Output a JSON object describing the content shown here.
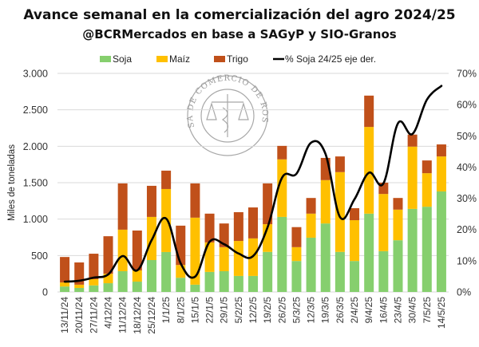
{
  "chart_data": {
    "type": "bar",
    "stacked": true,
    "title": "Avance semanal en la comercialización  del agro 2024/25",
    "subtitle": "@BCRMercados en base a SAGyP y SIO-Granos",
    "xlabel": "",
    "ylabel": "Miles de toneladas",
    "ylim": [
      0,
      3000
    ],
    "yticks": [
      "0",
      "500",
      "1.000",
      "1.500",
      "2.000",
      "2.500",
      "3.000"
    ],
    "ytick_values": [
      0,
      500,
      1000,
      1500,
      2000,
      2500,
      3000
    ],
    "y2lim": [
      0,
      70
    ],
    "y2ticks": [
      "0%",
      "10%",
      "20%",
      "30%",
      "40%",
      "50%",
      "60%",
      "70%"
    ],
    "y2tick_values": [
      0,
      10,
      20,
      30,
      40,
      50,
      60,
      70
    ],
    "grid": true,
    "legend_position": "top",
    "categories": [
      "13/11/24",
      "20/11/24",
      "27/11/24",
      "4/12/24",
      "11/12/24",
      "18/12/24",
      "25/12/24",
      "1/1/25",
      "8/1/25",
      "15/1/5",
      "22/1/5",
      "29/1/5",
      "5/2/25",
      "12/2/5",
      "19/2/5",
      "26/2/5",
      "5/3/25",
      "12/3/5",
      "19/3/5",
      "26/3/5",
      "2/4/25",
      "9/4/25",
      "16/4/5",
      "23/4/5",
      "30/4/5",
      "7/5/25",
      "14/5/25"
    ],
    "series": [
      {
        "name": "Soja",
        "type": "bar",
        "axis": "left",
        "color": "#86CF6E",
        "values": [
          75,
          55,
          90,
          120,
          285,
          142,
          438,
          548,
          195,
          100,
          275,
          285,
          220,
          220,
          550,
          1030,
          425,
          745,
          940,
          550,
          425,
          1075,
          560,
          710,
          1140,
          1170,
          1380
        ]
      },
      {
        "name": "Maíz",
        "type": "bar",
        "axis": "left",
        "color": "#FFC000",
        "values": [
          55,
          45,
          85,
          130,
          570,
          154,
          592,
          865,
          175,
          920,
          405,
          330,
          480,
          515,
          380,
          790,
          190,
          330,
          595,
          1095,
          560,
          1190,
          785,
          420,
          855,
          460,
          480
        ]
      },
      {
        "name": "Trigo",
        "type": "bar",
        "axis": "left",
        "color": "#C0501A",
        "values": [
          350,
          305,
          350,
          515,
          635,
          547,
          427,
          252,
          540,
          470,
          395,
          325,
          395,
          425,
          560,
          185,
          275,
          215,
          305,
          215,
          165,
          430,
          155,
          160,
          165,
          175,
          165
        ]
      },
      {
        "name": "% Soja 24/25 eje der.",
        "type": "line",
        "axis": "right",
        "color": "#000000",
        "values": [
          3.3,
          3.6,
          4.6,
          5.6,
          11.5,
          6.9,
          16.6,
          23.5,
          9.2,
          4.9,
          16.1,
          15.3,
          12.3,
          11.5,
          20.7,
          36.6,
          37.9,
          47.8,
          44.2,
          24.0,
          29.7,
          38.2,
          34.8,
          54.0,
          50.6,
          61.6,
          66.0
        ]
      }
    ],
    "watermark": "BOLSA DE COMERCIO DE ROSARIO"
  }
}
